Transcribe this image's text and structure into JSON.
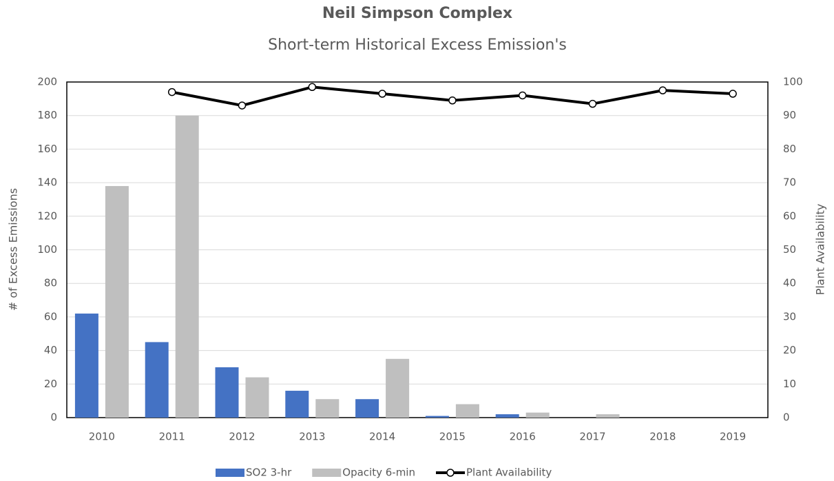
{
  "chart_data": {
    "type": "bar-line",
    "title": "Neil Simpson Complex",
    "subtitle": "Short-term Historical Excess Emission's",
    "y_label": "# of Excess Emissions",
    "y2_label": "Plant Availability",
    "categories": [
      "2010",
      "2011",
      "2012",
      "2013",
      "2014",
      "2015",
      "2016",
      "2017",
      "2018",
      "2019"
    ],
    "series": [
      {
        "name": "SO2 3-hr",
        "type": "bar",
        "color": "#4472c4",
        "values": [
          62,
          45,
          30,
          16,
          11,
          1,
          2,
          0,
          0,
          0
        ]
      },
      {
        "name": "Opacity 6-min",
        "type": "bar",
        "color": "#bfbfbf",
        "values": [
          138,
          180,
          24,
          11,
          35,
          8,
          3,
          2,
          0,
          0
        ]
      },
      {
        "name": "Plant Availability",
        "type": "line",
        "axis": "y2",
        "color": "#000000",
        "values": [
          null,
          97,
          93,
          98.5,
          96.5,
          94.5,
          96,
          93.5,
          97.5,
          96.5
        ]
      }
    ],
    "ylim": [
      0,
      200
    ],
    "yticks": [
      0,
      20,
      40,
      60,
      80,
      100,
      120,
      140,
      160,
      180,
      200
    ],
    "y2lim": [
      0,
      100
    ],
    "y2ticks": [
      0,
      10,
      20,
      30,
      40,
      50,
      60,
      70,
      80,
      90,
      100
    ],
    "grid": true,
    "legend": "bottom"
  }
}
